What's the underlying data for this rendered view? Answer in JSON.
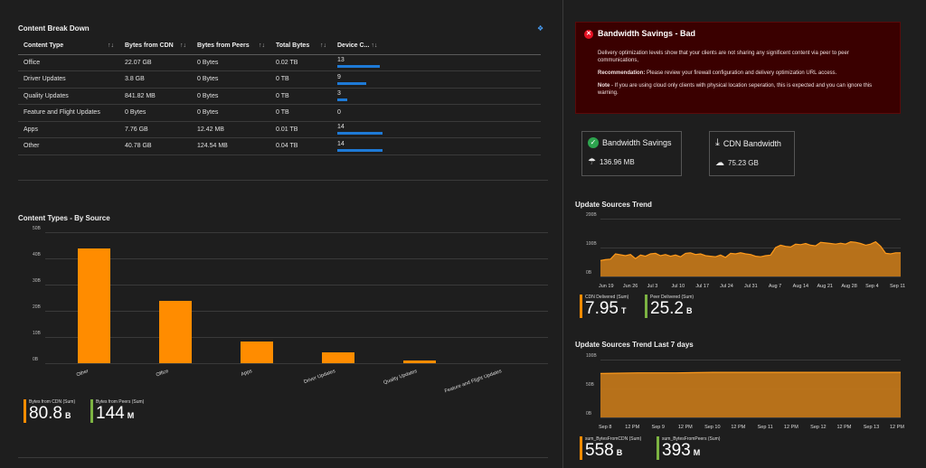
{
  "breakdown": {
    "title": "Content Break Down",
    "columns": [
      "Content Type",
      "Bytes from CDN",
      "Bytes from Peers",
      "Total Bytes",
      "Device C..."
    ],
    "rows": [
      {
        "type": "Office",
        "cdn": "22.07 GB",
        "peers": "0 Bytes",
        "total": "0.02 TB",
        "devices": "13",
        "dev_frac": 0.93
      },
      {
        "type": "Driver Updates",
        "cdn": "3.8 GB",
        "peers": "0 Bytes",
        "total": "0 TB",
        "devices": "9",
        "dev_frac": 0.64
      },
      {
        "type": "Quality Updates",
        "cdn": "841.82 MB",
        "peers": "0 Bytes",
        "total": "0 TB",
        "devices": "3",
        "dev_frac": 0.21
      },
      {
        "type": "Feature and Flight Updates",
        "cdn": "0 Bytes",
        "peers": "0 Bytes",
        "total": "0 TB",
        "devices": "0",
        "dev_frac": 0
      },
      {
        "type": "Apps",
        "cdn": "7.76 GB",
        "peers": "12.42 MB",
        "total": "0.01 TB",
        "devices": "14",
        "dev_frac": 1
      },
      {
        "type": "Other",
        "cdn": "40.78 GB",
        "peers": "124.54 MB",
        "total": "0.04 TB",
        "devices": "14",
        "dev_frac": 1
      }
    ]
  },
  "alert": {
    "title": "Bandwidth Savings - Bad",
    "line1": "Delivery optimization levels show that your clients are not sharing any significent content via peer to peer communications,",
    "rec_label": "Recommendation:",
    "rec_text": " Please review your firewall configuration and delivery optimization URL access.",
    "note_label": "Note",
    "note_text": " - If you are using cloud only clients with physical location seperation, this is expected and you can ignore this warning."
  },
  "savings": {
    "title": "Bandwidth Savings",
    "value": "136.96 MB"
  },
  "cdn_bw": {
    "title": "CDN Bandwidth",
    "value": "75.23 GB"
  },
  "source_chart": {
    "title": "Content Types - By Source",
    "legend": [
      {
        "label": "Bytes from CDN (Sum)",
        "value": "80.8",
        "unit": "B",
        "color": "#ff8c00"
      },
      {
        "label": "Bytes from Peers (Sum)",
        "value": "144",
        "unit": "M",
        "color": "#7cb342"
      }
    ]
  },
  "trend": {
    "title": "Update Sources Trend",
    "legend": [
      {
        "label": "CDN Delivered (Sum)",
        "value": "7.95",
        "unit": "T",
        "color": "#ff8c00"
      },
      {
        "label": "Peer Delivered (Sum)",
        "value": "25.2",
        "unit": "B",
        "color": "#7cb342"
      }
    ]
  },
  "trend7": {
    "title": "Update Sources Trend Last 7 days",
    "legend": [
      {
        "label": "sum_BytesFromCDN (Sum)",
        "value": "558",
        "unit": "B",
        "color": "#ff8c00"
      },
      {
        "label": "sum_BytesFromPeers (Sum)",
        "value": "393",
        "unit": "M",
        "color": "#7cb342"
      }
    ]
  },
  "chart_data": [
    {
      "type": "bar",
      "title": "Content Types - By Source",
      "categories": [
        "Other",
        "Office",
        "Apps",
        "Driver Updates",
        "Quality Updates",
        "Feature and Flight Updates"
      ],
      "series": [
        {
          "name": "Bytes from CDN (Sum)",
          "values": [
            43.8,
            23.7,
            8.3,
            4.1,
            0.9,
            0
          ]
        }
      ],
      "yticks": [
        "0B",
        "10B",
        "20B",
        "30B",
        "40B",
        "50B"
      ],
      "ylim": [
        0,
        50
      ],
      "color": "#ff8c00"
    },
    {
      "type": "area",
      "title": "Update Sources Trend",
      "xticks": [
        "Jun 19",
        "Jun 26",
        "Jul 3",
        "Jul 10",
        "Jul 17",
        "Jul 24",
        "Jul 31",
        "Aug 7",
        "Aug 14",
        "Aug 21",
        "Aug 28",
        "Sep 4",
        "Sep 11"
      ],
      "yticks": [
        "0B",
        "100B",
        "200B"
      ],
      "ylim": [
        0,
        200
      ],
      "values": [
        55,
        58,
        60,
        78,
        75,
        72,
        76,
        62,
        74,
        70,
        78,
        80,
        72,
        76,
        70,
        74,
        68,
        80,
        82,
        76,
        78,
        72,
        70,
        68,
        74,
        66,
        80,
        78,
        82,
        78,
        76,
        70,
        68,
        72,
        74,
        100,
        108,
        104,
        102,
        112,
        110,
        114,
        108,
        106,
        118,
        116,
        114,
        112,
        115,
        112,
        120,
        118,
        114,
        108,
        112,
        120,
        104,
        80,
        78,
        82,
        82
      ],
      "color": "#c87a1a"
    },
    {
      "type": "area",
      "title": "Update Sources Trend Last 7 days",
      "xticks": [
        "Sep 8",
        "12 PM",
        "Sep 9",
        "12 PM",
        "Sep 10",
        "12 PM",
        "Sep 11",
        "12 PM",
        "Sep 12",
        "12 PM",
        "Sep 13",
        "12 PM"
      ],
      "yticks": [
        "0B",
        "50B",
        "100B"
      ],
      "ylim": [
        0,
        100
      ],
      "values": [
        76,
        77,
        77,
        78,
        78,
        78,
        78,
        78,
        78
      ],
      "color": "#c87a1a"
    }
  ]
}
